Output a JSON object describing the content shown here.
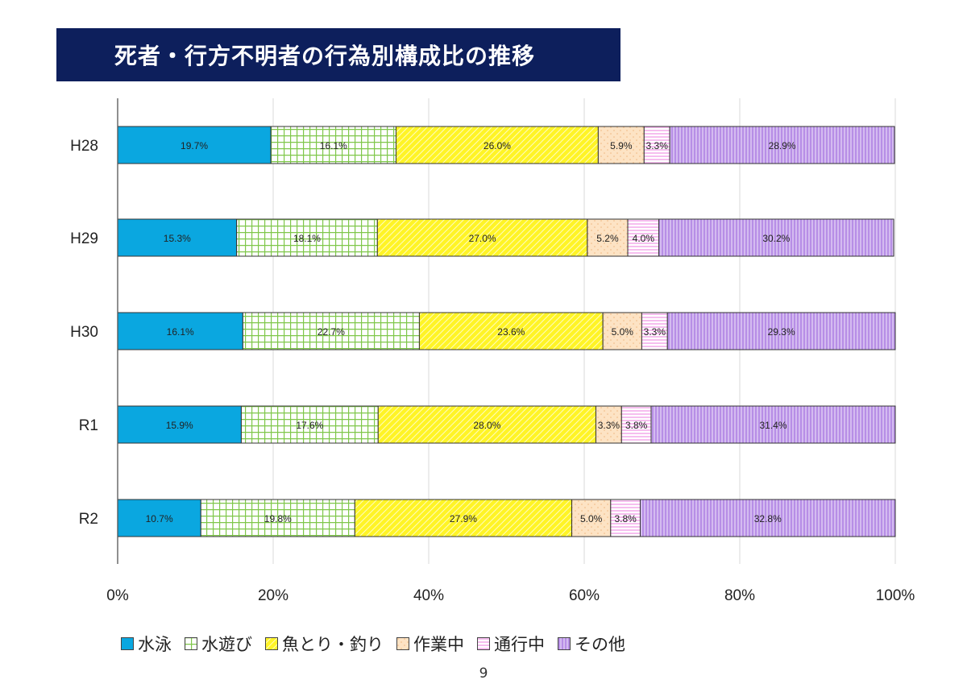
{
  "title": "死者・行方不明者の行為別構成比の推移",
  "page_number": "9",
  "chart_data": {
    "type": "bar",
    "orientation": "horizontal",
    "stacked": "percent",
    "categories": [
      "H28",
      "H29",
      "H30",
      "R1",
      "R2"
    ],
    "series": [
      {
        "name": "水泳",
        "values": [
          19.7,
          15.3,
          16.1,
          15.9,
          10.7
        ],
        "labels": [
          "19.7%",
          "15.3%",
          "16.1%",
          "15.9%",
          "10.7%"
        ],
        "color": "#0aa7e0",
        "pattern": "solid"
      },
      {
        "name": "水遊び",
        "values": [
          16.1,
          18.1,
          22.7,
          17.6,
          19.8
        ],
        "labels": [
          "16.1%",
          "18.1%",
          "22.7%",
          "17.6%",
          "19.8%"
        ],
        "color": "#7fc74a",
        "pattern": "grid"
      },
      {
        "name": "魚とり・釣り",
        "values": [
          26.0,
          27.0,
          23.6,
          28.0,
          27.9
        ],
        "labels": [
          "26.0%",
          "27.0%",
          "23.6%",
          "28.0%",
          "27.9%"
        ],
        "color": "#fff200",
        "pattern": "diagonal"
      },
      {
        "name": "作業中",
        "values": [
          5.9,
          5.2,
          5.0,
          3.3,
          5.0
        ],
        "labels": [
          "5.9%",
          "5.2%",
          "5.0%",
          "3.3%",
          "5.0%"
        ],
        "color": "#fde3c4",
        "pattern": "dots"
      },
      {
        "name": "通行中",
        "values": [
          3.3,
          4.0,
          3.3,
          3.8,
          3.8
        ],
        "labels": [
          "3.3%",
          "4.0%",
          "3.3%",
          "3.8%",
          "3.8%"
        ],
        "color": "#f3a9ea",
        "pattern": "horizontal"
      },
      {
        "name": "その他",
        "values": [
          28.9,
          30.2,
          29.3,
          31.4,
          32.8
        ],
        "labels": [
          "28.9%",
          "30.2%",
          "29.3%",
          "31.4%",
          "32.8%"
        ],
        "color": "#b78ee6",
        "pattern": "vertical"
      }
    ],
    "xlim": [
      0,
      100
    ],
    "x_ticks": [
      "0%",
      "20%",
      "40%",
      "60%",
      "80%",
      "100%"
    ],
    "grid": true,
    "legend_position": "bottom"
  }
}
